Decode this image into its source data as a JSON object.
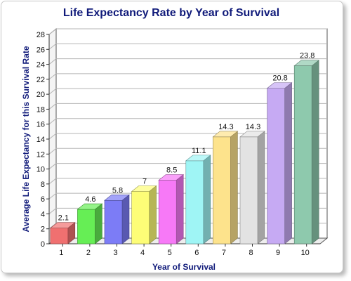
{
  "chart_data": {
    "type": "bar",
    "title": "Life Expectancy Rate by Year of  Survival",
    "xlabel": "Year of Survival",
    "ylabel": "Average Life Expectancy  for this Survival Rate",
    "categories": [
      "1",
      "2",
      "3",
      "4",
      "5",
      "6",
      "7",
      "8",
      "9",
      "10"
    ],
    "values": [
      2.1,
      4.6,
      5.8,
      7,
      8.5,
      11.1,
      14.3,
      14.3,
      20.8,
      23.8
    ],
    "data_labels": [
      "2.1",
      "4.6",
      "5.8",
      "7",
      "8.5",
      "11.1",
      "14.3",
      "14.3",
      "20.8",
      "23.8"
    ],
    "ylim": [
      0,
      28
    ],
    "yticks": [
      0,
      2,
      4,
      6,
      8,
      10,
      12,
      14,
      16,
      18,
      20,
      22,
      24,
      26,
      28
    ],
    "grid": true,
    "legend": "none",
    "colors": [
      "#f07070",
      "#66ee55",
      "#7c7cf6",
      "#fdfd77",
      "#f779f7",
      "#9ff5f5",
      "#fde38c",
      "#e3e3e3",
      "#c6aaf3",
      "#8ec9ad"
    ]
  }
}
